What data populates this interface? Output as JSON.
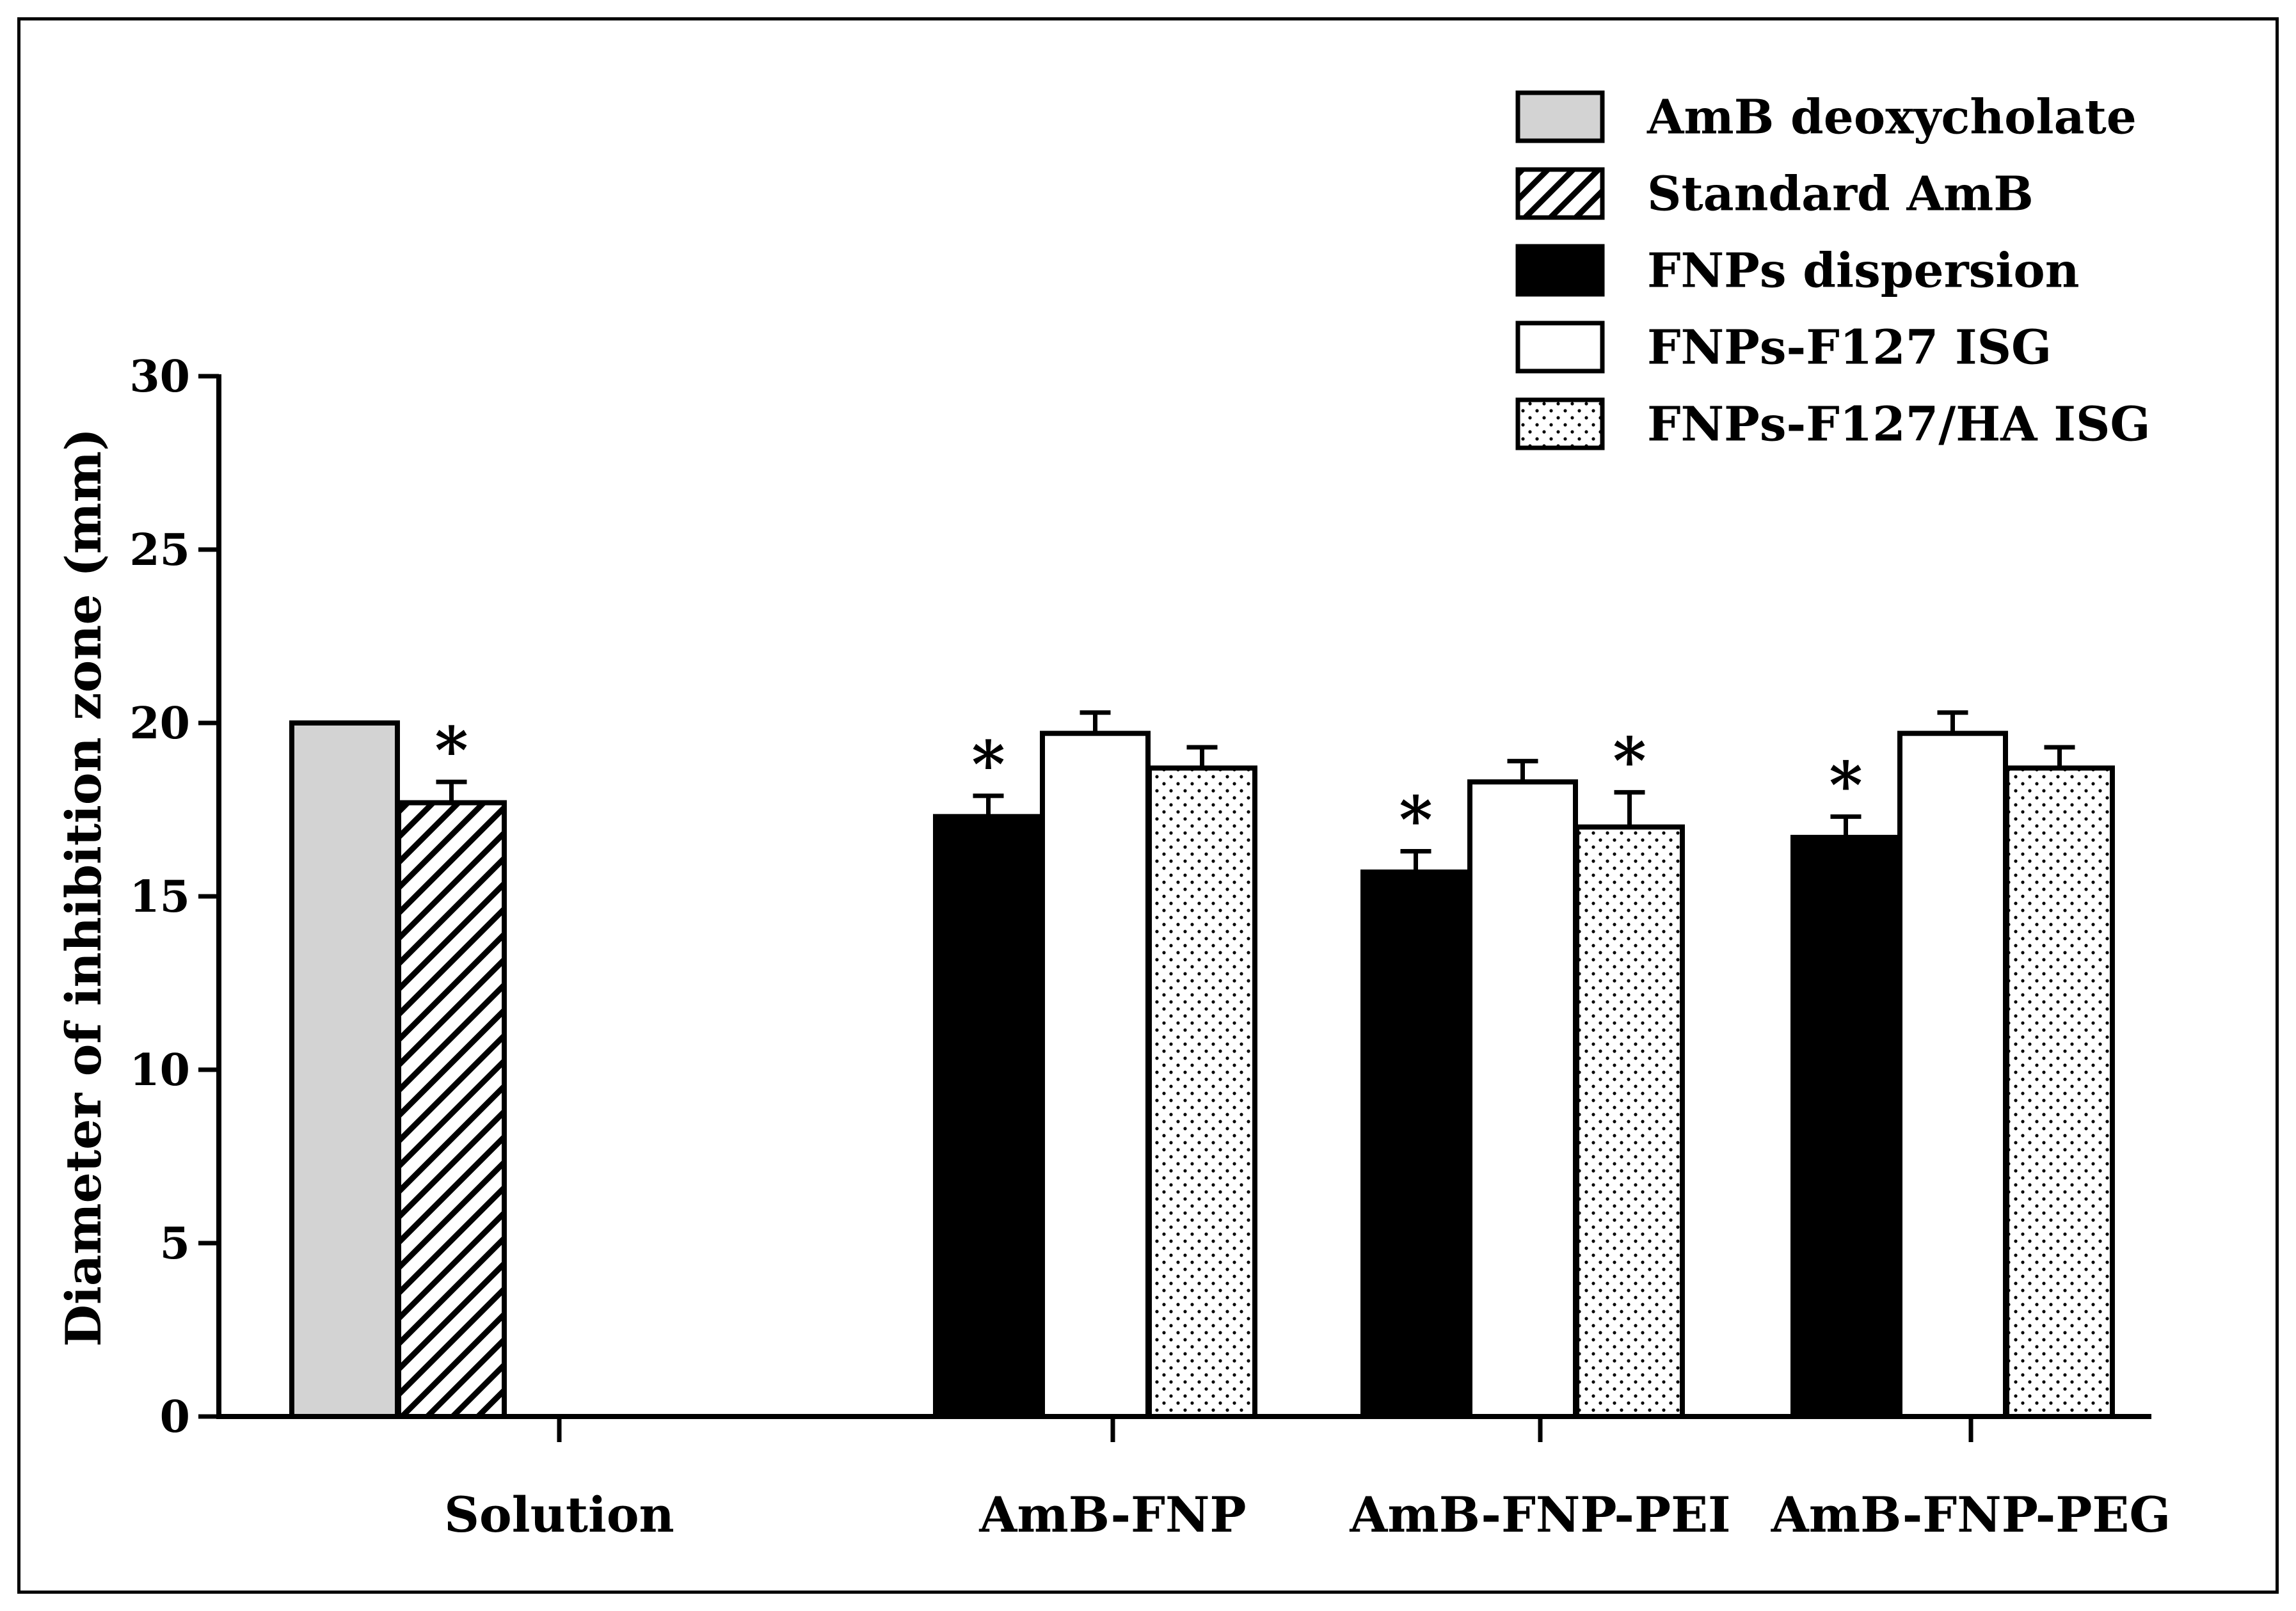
{
  "chart_data": {
    "type": "bar",
    "title": "",
    "xlabel": "",
    "ylabel": "Diameter of inhibition zone (mm)",
    "ylim": [
      0,
      30
    ],
    "yticks": [
      0,
      5,
      10,
      15,
      20,
      25,
      30
    ],
    "categories": [
      "Solution",
      "AmB-FNP",
      "AmB-FNP-PEI",
      "AmB-FNP-PEG"
    ],
    "legend_position": "top-right",
    "series": [
      {
        "name": "AmB deoxycholate",
        "pattern": "solid-gray",
        "color": "#d3d3d3",
        "values": [
          20.0,
          null,
          null,
          null
        ],
        "errors": [
          0,
          null,
          null,
          null
        ]
      },
      {
        "name": "Standard AmB",
        "pattern": "diagonal-hatch",
        "color": "#000000",
        "values": [
          17.7,
          null,
          null,
          null
        ],
        "errors": [
          0.6,
          null,
          null,
          null
        ]
      },
      {
        "name": "FNPs dispersion",
        "pattern": "solid-black",
        "color": "#000000",
        "values": [
          null,
          17.3,
          15.7,
          16.7
        ],
        "errors": [
          null,
          0.6,
          0.6,
          0.6
        ]
      },
      {
        "name": "FNPs-F127 ISG",
        "pattern": "white",
        "color": "#ffffff",
        "values": [
          null,
          19.7,
          18.3,
          19.7
        ],
        "errors": [
          null,
          0.6,
          0.6,
          0.6
        ]
      },
      {
        "name": "FNPs-F127/HA ISG",
        "pattern": "dots",
        "color": "#000000",
        "values": [
          null,
          18.7,
          17.0,
          18.7
        ],
        "errors": [
          null,
          0.6,
          1.0,
          0.6
        ]
      }
    ],
    "annotations": [
      {
        "text": "*",
        "category": "Solution",
        "series": "Standard AmB"
      },
      {
        "text": "*",
        "category": "AmB-FNP",
        "series": "FNPs dispersion"
      },
      {
        "text": "*",
        "category": "AmB-FNP-PEI",
        "series": "FNPs dispersion"
      },
      {
        "text": "*",
        "category": "AmB-FNP-PEI",
        "series": "FNPs-F127/HA ISG"
      },
      {
        "text": "*",
        "category": "AmB-FNP-PEG",
        "series": "FNPs dispersion"
      }
    ]
  }
}
